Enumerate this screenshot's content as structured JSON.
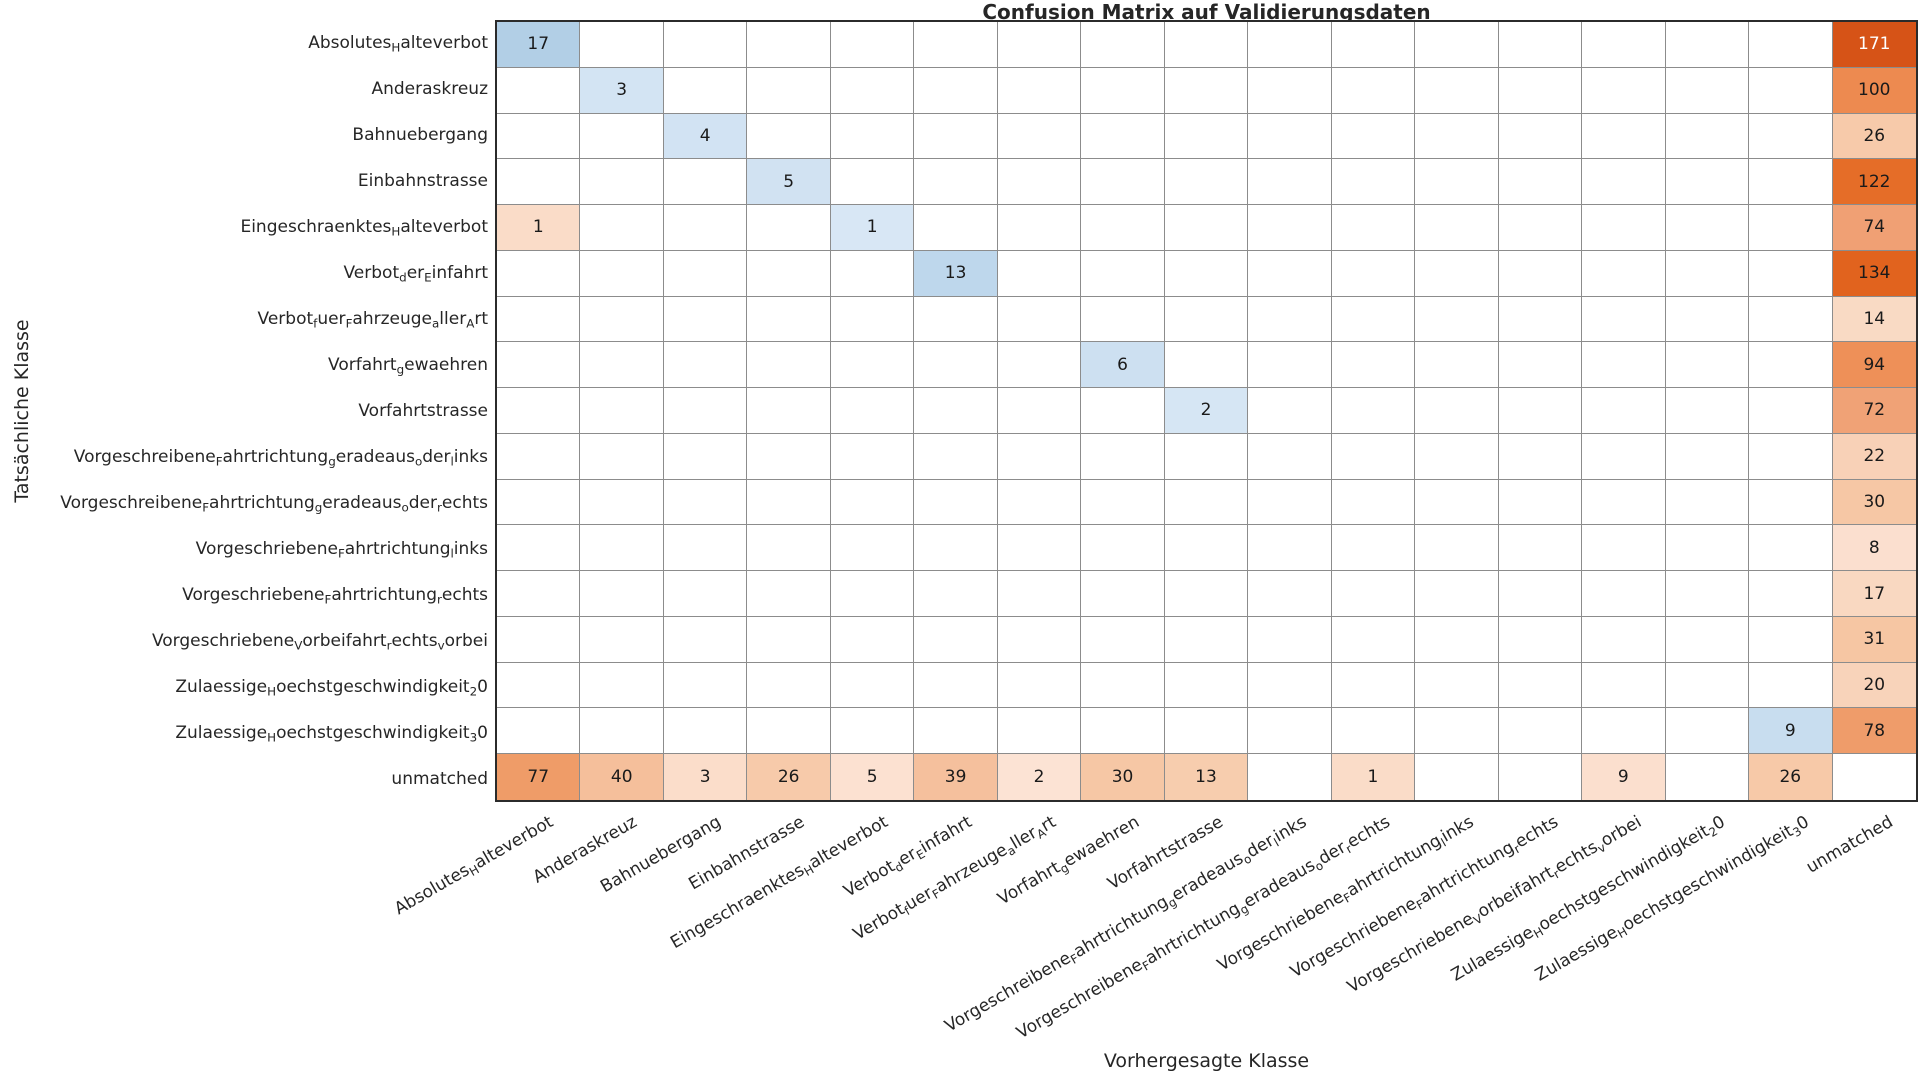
{
  "chart_data": {
    "type": "heatmap",
    "title": "Confusion Matrix auf Validierungsdaten",
    "xlabel": "Vorhergesagte Klasse",
    "ylabel": "Tatsächliche Klasse",
    "legend": "none",
    "grid": "on",
    "x_categories": [
      "Absolutes_Halteverbot",
      "Anderaskreuz",
      "Bahnuebergang",
      "Einbahnstrasse",
      "Eingeschraenktes_Halteverbot",
      "Verbot_der_Einfahrt",
      "Verbot_fuer_Fahrzeuge_aller_Art",
      "Vorfahrt_gewaehren",
      "Vorfahrtstrasse",
      "Vorgeschreibene_Fahrtrichtung_geradeaus_oder_links",
      "Vorgeschreibene_Fahrtrichtung_geradeaus_oder_rechts",
      "Vorgeschriebene_Fahrtrichtung_links",
      "Vorgeschriebene_Fahrtrichtung_rechts",
      "Vorgeschriebene_Vorbeifahrt_rechts_vorbei",
      "Zulaessige_Hoechstgeschwindigkeit_20",
      "Zulaessige_Hoechstgeschwindigkeit_30",
      "unmatched"
    ],
    "y_categories": [
      "Absolutes_Halteverbot",
      "Anderaskreuz",
      "Bahnuebergang",
      "Einbahnstrasse",
      "Eingeschraenktes_Halteverbot",
      "Verbot_der_Einfahrt",
      "Verbot_fuer_Fahrzeuge_aller_Art",
      "Vorfahrt_gewaehren",
      "Vorfahrtstrasse",
      "Vorgeschreibene_Fahrtrichtung_geradeaus_oder_links",
      "Vorgeschreibene_Fahrtrichtung_geradeaus_oder_rechts",
      "Vorgeschriebene_Fahrtrichtung_links",
      "Vorgeschriebene_Fahrtrichtung_rechts",
      "Vorgeschriebene_Vorbeifahrt_rechts_vorbei",
      "Zulaessige_Hoechstgeschwindigkeit_20",
      "Zulaessige_Hoechstgeschwindigkeit_30",
      "unmatched"
    ],
    "matrix": [
      [
        17,
        null,
        null,
        null,
        null,
        null,
        null,
        null,
        null,
        null,
        null,
        null,
        null,
        null,
        null,
        null,
        171
      ],
      [
        null,
        3,
        null,
        null,
        null,
        null,
        null,
        null,
        null,
        null,
        null,
        null,
        null,
        null,
        null,
        null,
        100
      ],
      [
        null,
        null,
        4,
        null,
        null,
        null,
        null,
        null,
        null,
        null,
        null,
        null,
        null,
        null,
        null,
        null,
        26
      ],
      [
        null,
        null,
        null,
        5,
        null,
        null,
        null,
        null,
        null,
        null,
        null,
        null,
        null,
        null,
        null,
        null,
        122
      ],
      [
        1,
        null,
        null,
        null,
        1,
        null,
        null,
        null,
        null,
        null,
        null,
        null,
        null,
        null,
        null,
        null,
        74
      ],
      [
        null,
        null,
        null,
        null,
        null,
        13,
        null,
        null,
        null,
        null,
        null,
        null,
        null,
        null,
        null,
        null,
        134
      ],
      [
        null,
        null,
        null,
        null,
        null,
        null,
        null,
        null,
        null,
        null,
        null,
        null,
        null,
        null,
        null,
        null,
        14
      ],
      [
        null,
        null,
        null,
        null,
        null,
        null,
        null,
        6,
        null,
        null,
        null,
        null,
        null,
        null,
        null,
        null,
        94
      ],
      [
        null,
        null,
        null,
        null,
        null,
        null,
        null,
        null,
        2,
        null,
        null,
        null,
        null,
        null,
        null,
        null,
        72
      ],
      [
        null,
        null,
        null,
        null,
        null,
        null,
        null,
        null,
        null,
        null,
        null,
        null,
        null,
        null,
        null,
        null,
        22
      ],
      [
        null,
        null,
        null,
        null,
        null,
        null,
        null,
        null,
        null,
        null,
        null,
        null,
        null,
        null,
        null,
        null,
        30
      ],
      [
        null,
        null,
        null,
        null,
        null,
        null,
        null,
        null,
        null,
        null,
        null,
        null,
        null,
        null,
        null,
        null,
        8
      ],
      [
        null,
        null,
        null,
        null,
        null,
        null,
        null,
        null,
        null,
        null,
        null,
        null,
        null,
        null,
        null,
        null,
        17
      ],
      [
        null,
        null,
        null,
        null,
        null,
        null,
        null,
        null,
        null,
        null,
        null,
        null,
        null,
        null,
        null,
        null,
        31
      ],
      [
        null,
        null,
        null,
        null,
        null,
        null,
        null,
        null,
        null,
        null,
        null,
        null,
        null,
        null,
        null,
        null,
        20
      ],
      [
        null,
        null,
        null,
        null,
        null,
        null,
        null,
        null,
        null,
        null,
        null,
        null,
        null,
        null,
        null,
        9,
        78
      ],
      [
        77,
        40,
        3,
        26,
        5,
        39,
        2,
        30,
        13,
        null,
        1,
        null,
        null,
        9,
        null,
        26,
        null
      ]
    ],
    "colormap": {
      "diagonal": "Blues",
      "off_diagonal": "Oranges"
    }
  },
  "styles": {
    "grid_line_color": "#8c8c8c",
    "outer_border_color": "#2b2b2b",
    "default_cell_text_color": "#1a1a1a",
    "background": "#ffffff"
  },
  "cells": [
    {
      "r": 1,
      "c": 1,
      "v": "17",
      "bg": "#b2cfe6"
    },
    {
      "r": 1,
      "c": 17,
      "v": "171",
      "bg": "#d65317",
      "fg": "#ffffff"
    },
    {
      "r": 2,
      "c": 2,
      "v": "3",
      "bg": "#d3e4f3"
    },
    {
      "r": 2,
      "c": 17,
      "v": "100",
      "bg": "#ed8a50"
    },
    {
      "r": 3,
      "c": 3,
      "v": "4",
      "bg": "#d2e3f3"
    },
    {
      "r": 3,
      "c": 17,
      "v": "26",
      "bg": "#f7caaa"
    },
    {
      "r": 4,
      "c": 4,
      "v": "5",
      "bg": "#d1e2f2"
    },
    {
      "r": 4,
      "c": 17,
      "v": "122",
      "bg": "#e56d28"
    },
    {
      "r": 5,
      "c": 1,
      "v": "1",
      "bg": "#fadcc8"
    },
    {
      "r": 5,
      "c": 5,
      "v": "1",
      "bg": "#d8e7f5"
    },
    {
      "r": 5,
      "c": 17,
      "v": "74",
      "bg": "#f0a074"
    },
    {
      "r": 6,
      "c": 6,
      "v": "13",
      "bg": "#bed7ec"
    },
    {
      "r": 6,
      "c": 17,
      "v": "134",
      "bg": "#e1631e"
    },
    {
      "r": 7,
      "c": 17,
      "v": "14",
      "bg": "#f9dac4"
    },
    {
      "r": 8,
      "c": 8,
      "v": "6",
      "bg": "#cde0f1"
    },
    {
      "r": 8,
      "c": 17,
      "v": "94",
      "bg": "#ee9058"
    },
    {
      "r": 9,
      "c": 9,
      "v": "2",
      "bg": "#d6e6f4"
    },
    {
      "r": 9,
      "c": 17,
      "v": "72",
      "bg": "#f0a276"
    },
    {
      "r": 10,
      "c": 17,
      "v": "22",
      "bg": "#f8d1b7"
    },
    {
      "r": 11,
      "c": 17,
      "v": "30",
      "bg": "#f6c7a5"
    },
    {
      "r": 12,
      "c": 17,
      "v": "8",
      "bg": "#fbdfcf"
    },
    {
      "r": 13,
      "c": 17,
      "v": "17",
      "bg": "#f9d8c1"
    },
    {
      "r": 14,
      "c": 17,
      "v": "31",
      "bg": "#f6c6a3"
    },
    {
      "r": 15,
      "c": 17,
      "v": "20",
      "bg": "#f8d3ba"
    },
    {
      "r": 16,
      "c": 16,
      "v": "9",
      "bg": "#c8ddef"
    },
    {
      "r": 16,
      "c": 17,
      "v": "78",
      "bg": "#ef9c6a"
    },
    {
      "r": 17,
      "c": 1,
      "v": "77",
      "bg": "#ef9c68"
    },
    {
      "r": 17,
      "c": 2,
      "v": "40",
      "bg": "#f5bf9b"
    },
    {
      "r": 17,
      "c": 3,
      "v": "3",
      "bg": "#fbddca"
    },
    {
      "r": 17,
      "c": 4,
      "v": "26",
      "bg": "#f7caaa"
    },
    {
      "r": 17,
      "c": 5,
      "v": "5",
      "bg": "#fce1d1"
    },
    {
      "r": 17,
      "c": 6,
      "v": "39",
      "bg": "#f5c09d"
    },
    {
      "r": 17,
      "c": 7,
      "v": "2",
      "bg": "#fce3d4"
    },
    {
      "r": 17,
      "c": 8,
      "v": "30",
      "bg": "#f6c7a5"
    },
    {
      "r": 17,
      "c": 9,
      "v": "13",
      "bg": "#f7cdae"
    },
    {
      "r": 17,
      "c": 11,
      "v": "1",
      "bg": "#fadcc8"
    },
    {
      "r": 17,
      "c": 14,
      "v": "9",
      "bg": "#fbdfce"
    },
    {
      "r": 17,
      "c": 16,
      "v": "26",
      "bg": "#f7c9a8"
    }
  ]
}
